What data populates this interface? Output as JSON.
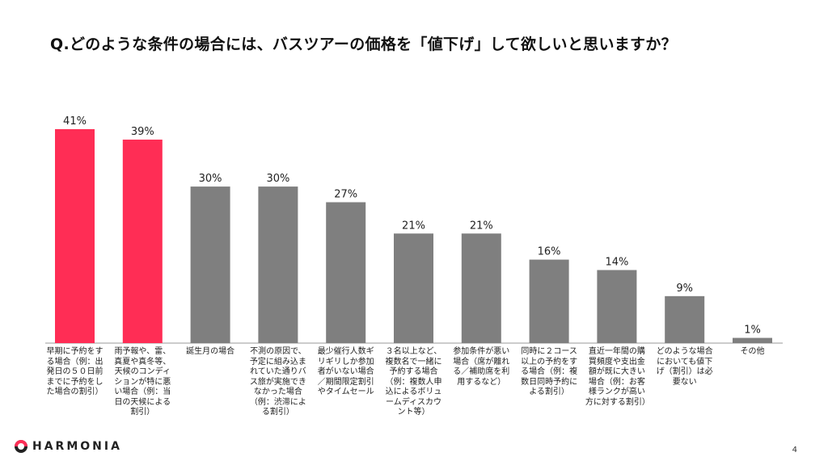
{
  "title": "Q.どのような条件の場合には、バスツアーの価格を「値下げ」して欲しいと思いますか？",
  "footer": {
    "brand": "HARMONIA",
    "page_number": "4"
  },
  "colors": {
    "highlight": "#ff2d55",
    "default": "#7f7f7f",
    "axis": "#999999"
  },
  "chart_data": {
    "type": "bar",
    "categories": [
      "早期に予約をする場合（例：出発日の５０日前までに予約をした場合の割引）",
      "雨予報や、雷、真夏や真冬等、天候のコンディションが特に悪い場合（例：当日の天候による割引）",
      "誕生月の場合",
      "不測の原因で、予定に組み込まれていた通りバス旅が実施できなかった場合（例：渋滞による割引）",
      "最少催行人数ギリギリしか参加者がいない場合／期間限定割引やタイムセール",
      "３名以上など、複数名で一緒に予約する場合（例：複数人申込によるボリュームディスカウント等）",
      "参加条件が悪い場合（席が離れる／補助席を利用するなど）",
      "同時に２コース以上の予約をする場合（例：複数日同時予約による割引）",
      "直近一年間の購買頻度や支出金額が既に大きい場合（例：お客様ランクが高い方に対する割引）",
      "どのような場合においても値下げ（割引）は必要ない",
      "その他"
    ],
    "values": [
      41,
      39,
      30,
      30,
      27,
      21,
      21,
      16,
      14,
      9,
      1
    ],
    "value_labels": [
      "41%",
      "39%",
      "30%",
      "30%",
      "27%",
      "21%",
      "21%",
      "16%",
      "14%",
      "9%",
      "1%"
    ],
    "highlighted": [
      true,
      true,
      false,
      false,
      false,
      false,
      false,
      false,
      false,
      false,
      false
    ],
    "ylim": [
      0,
      41
    ]
  }
}
